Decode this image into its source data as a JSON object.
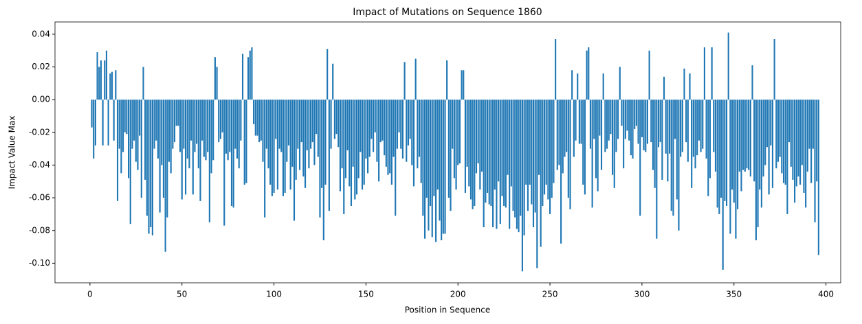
{
  "chart_data": {
    "type": "bar",
    "title": "Impact of Mutations on Sequence 1860",
    "xlabel": "Position in Sequence",
    "ylabel": "Impact Value Max",
    "color": "#1f77b4",
    "grid": false,
    "xlim": [
      -19,
      408
    ],
    "ylim": [
      -0.112,
      0.0475
    ],
    "xticks": [
      0,
      50,
      100,
      150,
      200,
      250,
      300,
      350,
      400
    ],
    "yticks": [
      {
        "value": -0.1,
        "label": "-0.10"
      },
      -0.08,
      -0.06,
      -0.04,
      -0.02,
      {
        "value": 0,
        "label": "0.00"
      },
      0.02,
      0.04
    ],
    "x": [
      1,
      2,
      3,
      4,
      5,
      6,
      7,
      8,
      9,
      10,
      11,
      12,
      13,
      14,
      15,
      16,
      17,
      18,
      19,
      20,
      21,
      22,
      23,
      24,
      25,
      26,
      27,
      28,
      29,
      30,
      31,
      32,
      33,
      34,
      35,
      36,
      37,
      38,
      39,
      40,
      41,
      42,
      43,
      44,
      45,
      46,
      47,
      48,
      49,
      50,
      51,
      52,
      53,
      54,
      55,
      56,
      57,
      58,
      59,
      60,
      61,
      62,
      63,
      64,
      65,
      66,
      67,
      68,
      69,
      70,
      71,
      72,
      73,
      74,
      75,
      76,
      77,
      78,
      79,
      80,
      81,
      82,
      83,
      84,
      85,
      86,
      87,
      88,
      89,
      90,
      91,
      92,
      93,
      94,
      95,
      96,
      97,
      98,
      99,
      100,
      101,
      102,
      103,
      104,
      105,
      106,
      107,
      108,
      109,
      110,
      111,
      112,
      113,
      114,
      115,
      116,
      117,
      118,
      119,
      120,
      121,
      122,
      123,
      124,
      125,
      126,
      127,
      128,
      129,
      130,
      131,
      132,
      133,
      134,
      135,
      136,
      137,
      138,
      139,
      140,
      141,
      142,
      143,
      144,
      145,
      146,
      147,
      148,
      149,
      150,
      151,
      152,
      153,
      154,
      155,
      156,
      157,
      158,
      159,
      160,
      161,
      162,
      163,
      164,
      165,
      166,
      167,
      168,
      169,
      170,
      171,
      172,
      173,
      174,
      175,
      176,
      177,
      178,
      179,
      180,
      181,
      182,
      183,
      184,
      185,
      186,
      187,
      188,
      189,
      190,
      191,
      192,
      193,
      194,
      195,
      196,
      197,
      198,
      199,
      200,
      201,
      202,
      203,
      204,
      205,
      206,
      207,
      208,
      209,
      210,
      211,
      212,
      213,
      214,
      215,
      216,
      217,
      218,
      219,
      220,
      221,
      222,
      223,
      224,
      225,
      226,
      227,
      228,
      229,
      230,
      231,
      232,
      233,
      234,
      235,
      236,
      237,
      238,
      239,
      240,
      241,
      242,
      243,
      244,
      245,
      246,
      247,
      248,
      249,
      250,
      251,
      252,
      253,
      254,
      255,
      256,
      257,
      258,
      259,
      260,
      261,
      262,
      263,
      264,
      265,
      266,
      267,
      268,
      269,
      270,
      271,
      272,
      273,
      274,
      275,
      276,
      277,
      278,
      279,
      280,
      281,
      282,
      283,
      284,
      285,
      286,
      287,
      288,
      289,
      290,
      291,
      292,
      293,
      294,
      295,
      296,
      297,
      298,
      299,
      300,
      301,
      302,
      303,
      304,
      305,
      306,
      307,
      308,
      309,
      310,
      311,
      312,
      313,
      314,
      315,
      316,
      317,
      318,
      319,
      320,
      321,
      322,
      323,
      324,
      325,
      326,
      327,
      328,
      329,
      330,
      331,
      332,
      333,
      334,
      335,
      336,
      337,
      338,
      339,
      340,
      341,
      342,
      343,
      344,
      345,
      346,
      347,
      348,
      349,
      350,
      351,
      352,
      353,
      354,
      355,
      356,
      357,
      358,
      359,
      360,
      361,
      362,
      363,
      364,
      365,
      366,
      367,
      368,
      369,
      370,
      371,
      372,
      373,
      374,
      375,
      376,
      377,
      378,
      379,
      380,
      381,
      382,
      383,
      384,
      385,
      386,
      387,
      388,
      389,
      390,
      391,
      392,
      393,
      394,
      395,
      396
    ],
    "values": [
      -0.017,
      -0.036,
      -0.028,
      0.029,
      0.02,
      0.024,
      -0.028,
      0.024,
      0.03,
      -0.028,
      0.016,
      0.017,
      -0.025,
      0.018,
      -0.062,
      -0.03,
      -0.045,
      -0.032,
      -0.02,
      -0.021,
      -0.048,
      -0.076,
      -0.03,
      -0.025,
      -0.038,
      -0.043,
      -0.022,
      -0.06,
      0.02,
      -0.049,
      -0.071,
      -0.082,
      -0.078,
      -0.083,
      -0.03,
      -0.025,
      -0.036,
      -0.069,
      -0.04,
      -0.06,
      -0.093,
      -0.072,
      -0.038,
      -0.045,
      -0.03,
      -0.026,
      -0.016,
      -0.016,
      -0.032,
      -0.061,
      -0.03,
      -0.058,
      -0.036,
      -0.042,
      -0.025,
      -0.058,
      -0.032,
      -0.027,
      -0.042,
      -0.062,
      -0.025,
      -0.035,
      -0.037,
      -0.032,
      -0.075,
      -0.045,
      -0.037,
      0.026,
      0.02,
      -0.026,
      -0.024,
      -0.02,
      -0.077,
      -0.033,
      -0.037,
      -0.032,
      -0.065,
      -0.066,
      -0.03,
      -0.036,
      -0.042,
      -0.025,
      0.028,
      -0.052,
      -0.051,
      0.026,
      0.03,
      0.032,
      -0.015,
      -0.022,
      -0.022,
      -0.026,
      -0.025,
      -0.038,
      -0.072,
      -0.03,
      -0.042,
      -0.052,
      -0.059,
      -0.057,
      -0.024,
      -0.055,
      -0.03,
      -0.032,
      -0.059,
      -0.057,
      -0.038,
      -0.028,
      -0.055,
      -0.041,
      -0.074,
      -0.049,
      -0.03,
      -0.043,
      -0.026,
      -0.047,
      -0.054,
      -0.031,
      -0.042,
      -0.03,
      -0.026,
      -0.04,
      -0.021,
      -0.035,
      -0.072,
      -0.054,
      -0.086,
      -0.052,
      0.031,
      -0.068,
      -0.03,
      0.022,
      -0.024,
      -0.021,
      -0.029,
      -0.056,
      -0.042,
      -0.07,
      -0.048,
      -0.031,
      -0.053,
      -0.065,
      -0.041,
      -0.061,
      -0.058,
      -0.048,
      -0.032,
      -0.055,
      -0.052,
      -0.036,
      -0.045,
      -0.035,
      -0.024,
      -0.032,
      -0.02,
      -0.038,
      -0.05,
      -0.026,
      -0.025,
      -0.034,
      -0.041,
      -0.046,
      -0.045,
      -0.052,
      -0.035,
      -0.071,
      -0.03,
      -0.02,
      -0.03,
      -0.036,
      0.023,
      -0.038,
      -0.028,
      -0.024,
      -0.04,
      -0.053,
      0.025,
      -0.042,
      -0.035,
      -0.051,
      -0.071,
      -0.085,
      -0.06,
      -0.08,
      -0.065,
      -0.084,
      -0.059,
      -0.087,
      -0.055,
      -0.074,
      -0.086,
      -0.082,
      -0.082,
      0.024,
      -0.06,
      -0.068,
      -0.03,
      -0.048,
      -0.055,
      -0.04,
      -0.039,
      0.018,
      0.018,
      -0.057,
      -0.041,
      -0.053,
      -0.061,
      -0.067,
      -0.065,
      -0.045,
      -0.039,
      -0.055,
      -0.044,
      -0.078,
      -0.063,
      -0.057,
      -0.064,
      -0.065,
      -0.078,
      -0.055,
      -0.079,
      -0.05,
      -0.076,
      -0.059,
      -0.065,
      -0.066,
      -0.046,
      -0.079,
      -0.053,
      -0.068,
      -0.072,
      -0.079,
      -0.081,
      -0.071,
      -0.105,
      -0.083,
      -0.052,
      -0.068,
      -0.052,
      -0.064,
      -0.078,
      -0.069,
      -0.103,
      -0.046,
      -0.09,
      -0.065,
      -0.058,
      -0.052,
      -0.061,
      -0.07,
      -0.06,
      -0.051,
      0.037,
      -0.043,
      -0.04,
      -0.088,
      -0.045,
      -0.035,
      -0.032,
      -0.06,
      -0.067,
      0.018,
      -0.035,
      -0.025,
      0.016,
      -0.027,
      -0.027,
      -0.052,
      -0.058,
      0.03,
      0.032,
      -0.03,
      -0.066,
      -0.024,
      -0.048,
      -0.056,
      -0.022,
      -0.043,
      0.016,
      -0.032,
      -0.03,
      -0.025,
      -0.021,
      -0.046,
      -0.054,
      -0.032,
      -0.024,
      0.02,
      -0.016,
      -0.042,
      -0.024,
      -0.019,
      -0.025,
      -0.034,
      -0.036,
      -0.018,
      -0.016,
      -0.027,
      -0.071,
      -0.023,
      -0.031,
      -0.032,
      -0.027,
      0.03,
      -0.026,
      -0.043,
      -0.054,
      -0.085,
      -0.029,
      -0.026,
      -0.049,
      0.014,
      -0.033,
      -0.05,
      -0.033,
      -0.068,
      -0.071,
      -0.024,
      -0.061,
      -0.08,
      -0.035,
      -0.032,
      0.019,
      -0.026,
      -0.038,
      0.016,
      -0.054,
      -0.035,
      -0.042,
      -0.034,
      -0.025,
      -0.032,
      -0.03,
      0.032,
      -0.036,
      -0.059,
      -0.048,
      0.032,
      -0.032,
      -0.044,
      -0.066,
      -0.07,
      -0.06,
      -0.104,
      -0.062,
      -0.065,
      0.041,
      -0.082,
      -0.055,
      -0.063,
      -0.085,
      -0.067,
      -0.044,
      -0.056,
      -0.043,
      -0.044,
      -0.042,
      -0.043,
      -0.047,
      0.021,
      -0.05,
      -0.086,
      -0.078,
      -0.055,
      -0.066,
      -0.047,
      -0.04,
      -0.029,
      -0.058,
      -0.028,
      -0.054,
      0.037,
      -0.042,
      -0.038,
      -0.035,
      -0.045,
      -0.051,
      -0.052,
      -0.07,
      -0.026,
      -0.041,
      -0.049,
      -0.063,
      -0.053,
      -0.047,
      -0.052,
      -0.04,
      -0.057,
      -0.066,
      -0.044,
      -0.03,
      -0.051,
      -0.03,
      -0.075,
      -0.05,
      -0.095
    ]
  }
}
